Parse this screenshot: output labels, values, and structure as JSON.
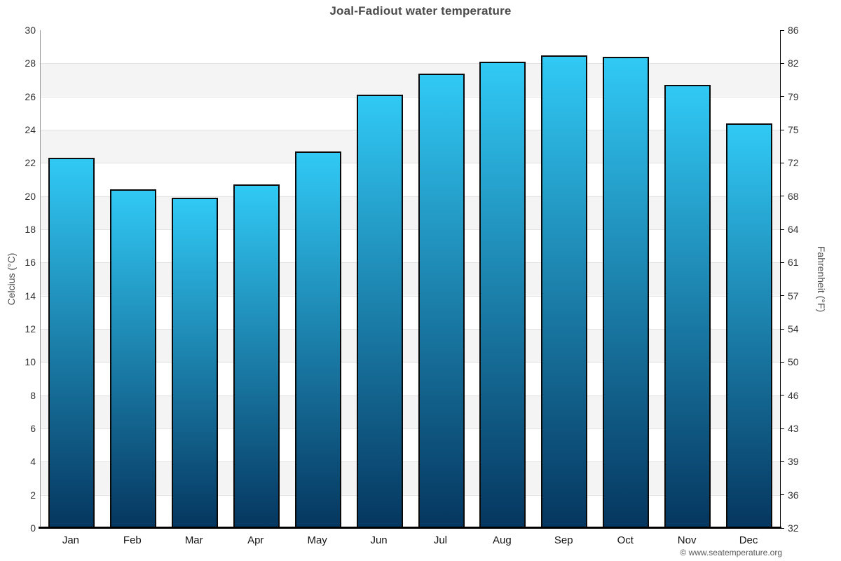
{
  "header": {
    "title": "Joal-Fadiout water temperature"
  },
  "axes": {
    "left_title": "Celcius (°C)",
    "right_title": "Fahrenheit (°F)"
  },
  "footer": {
    "copyright": "© www.seatemperature.org"
  },
  "colors": {
    "bar_gradient_top": "#31c9f5",
    "bar_gradient_bottom": "#05365f",
    "bar_border": "#0a0a0a",
    "band_light": "#ffffff",
    "band_dark": "#f4f4f4",
    "gridline": "#e2e2e2",
    "title_text": "#4a4a4a",
    "tick_text": "#333333",
    "axis_bottom": "#000000",
    "spine_left": "#9b9b9b",
    "spine_right": "#000000"
  },
  "chart_data": {
    "type": "bar",
    "title": "Joal-Fadiout water temperature",
    "categories": [
      "Jan",
      "Feb",
      "Mar",
      "Apr",
      "May",
      "Jun",
      "Jul",
      "Aug",
      "Sep",
      "Oct",
      "Nov",
      "Dec"
    ],
    "values": [
      22.3,
      20.4,
      19.9,
      20.7,
      22.7,
      26.1,
      27.4,
      28.1,
      28.5,
      28.4,
      26.7,
      24.4
    ],
    "value_unit": "°C",
    "ylabel": "Celcius (°C)",
    "ylabel_right": "Fahrenheit (°F)",
    "xlabel": "",
    "ylim": [
      0,
      30
    ],
    "ytick_step": 2,
    "yticks_celsius": [
      0,
      2,
      4,
      6,
      8,
      10,
      12,
      14,
      16,
      18,
      20,
      22,
      24,
      26,
      28,
      30
    ],
    "yticks_fahrenheit": [
      32,
      36,
      39,
      43,
      46,
      50,
      54,
      57,
      61,
      64,
      68,
      72,
      75,
      79,
      82,
      86
    ],
    "grid": "horizontal alternating bands, gridlines every 2°C",
    "legend": "none",
    "bar_style": "vertical gradient light-blue to dark-navy, black outline"
  }
}
